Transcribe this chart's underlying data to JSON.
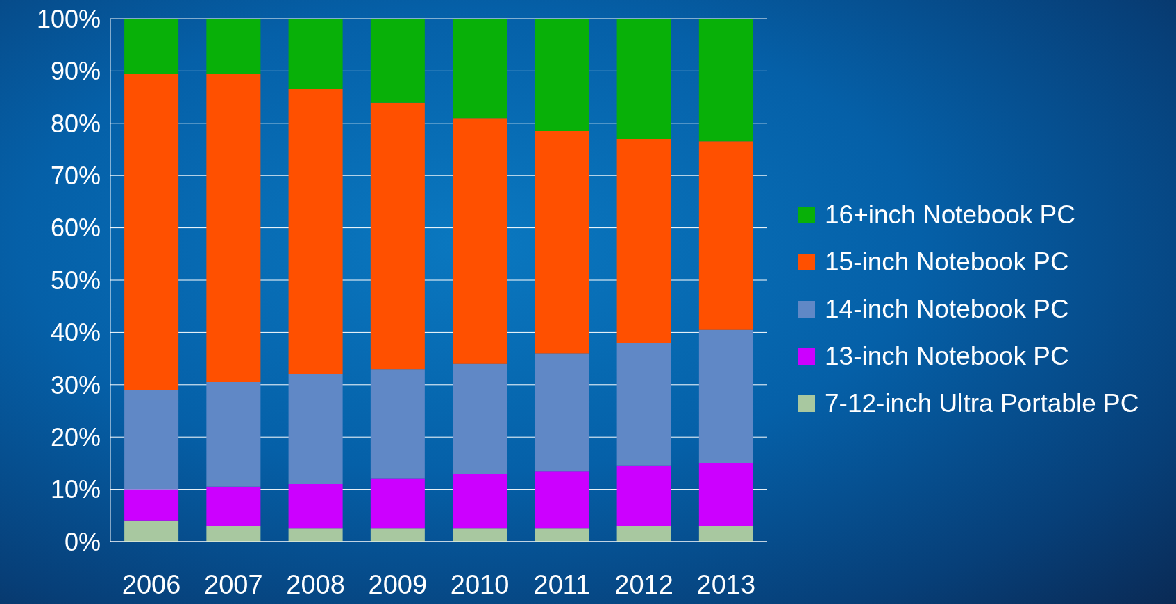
{
  "chart_data": {
    "type": "bar",
    "stacked": true,
    "categories": [
      "2006",
      "2007",
      "2008",
      "2009",
      "2010",
      "2011",
      "2012",
      "2013"
    ],
    "series": [
      {
        "name": "7-12-inch Ultra Portable PC",
        "color": "#a8c8a0",
        "values": [
          4,
          3,
          2.5,
          2.5,
          2.5,
          2.5,
          3,
          3
        ]
      },
      {
        "name": "13-inch Notebook PC",
        "color": "#cc00ff",
        "values": [
          6,
          7.5,
          8.5,
          9.5,
          10.5,
          11,
          11.5,
          12
        ]
      },
      {
        "name": "14-inch Notebook PC",
        "color": "#6088c6",
        "values": [
          19,
          20,
          21,
          21,
          21,
          22.5,
          23.5,
          25.5
        ]
      },
      {
        "name": "15-inch Notebook PC",
        "color": "#ff5000",
        "values": [
          60.5,
          59,
          54.5,
          51,
          47,
          42.5,
          39,
          36
        ]
      },
      {
        "name": "16+inch Notebook PC",
        "color": "#08b008",
        "values": [
          10.5,
          10.5,
          13.5,
          16,
          19,
          21.5,
          23,
          23.5
        ]
      }
    ],
    "ylim": [
      0,
      100
    ],
    "yticks": [
      {
        "value": 0,
        "label": "0%"
      },
      {
        "value": 10,
        "label": "10%"
      },
      {
        "value": 20,
        "label": "20%"
      },
      {
        "value": 30,
        "label": "30%"
      },
      {
        "value": 40,
        "label": "40%"
      },
      {
        "value": 50,
        "label": "50%"
      },
      {
        "value": 60,
        "label": "60%"
      },
      {
        "value": 70,
        "label": "70%"
      },
      {
        "value": 80,
        "label": "80%"
      },
      {
        "value": 90,
        "label": "90%"
      },
      {
        "value": 100,
        "label": "100%"
      }
    ],
    "grid": "y",
    "legend": "right"
  }
}
